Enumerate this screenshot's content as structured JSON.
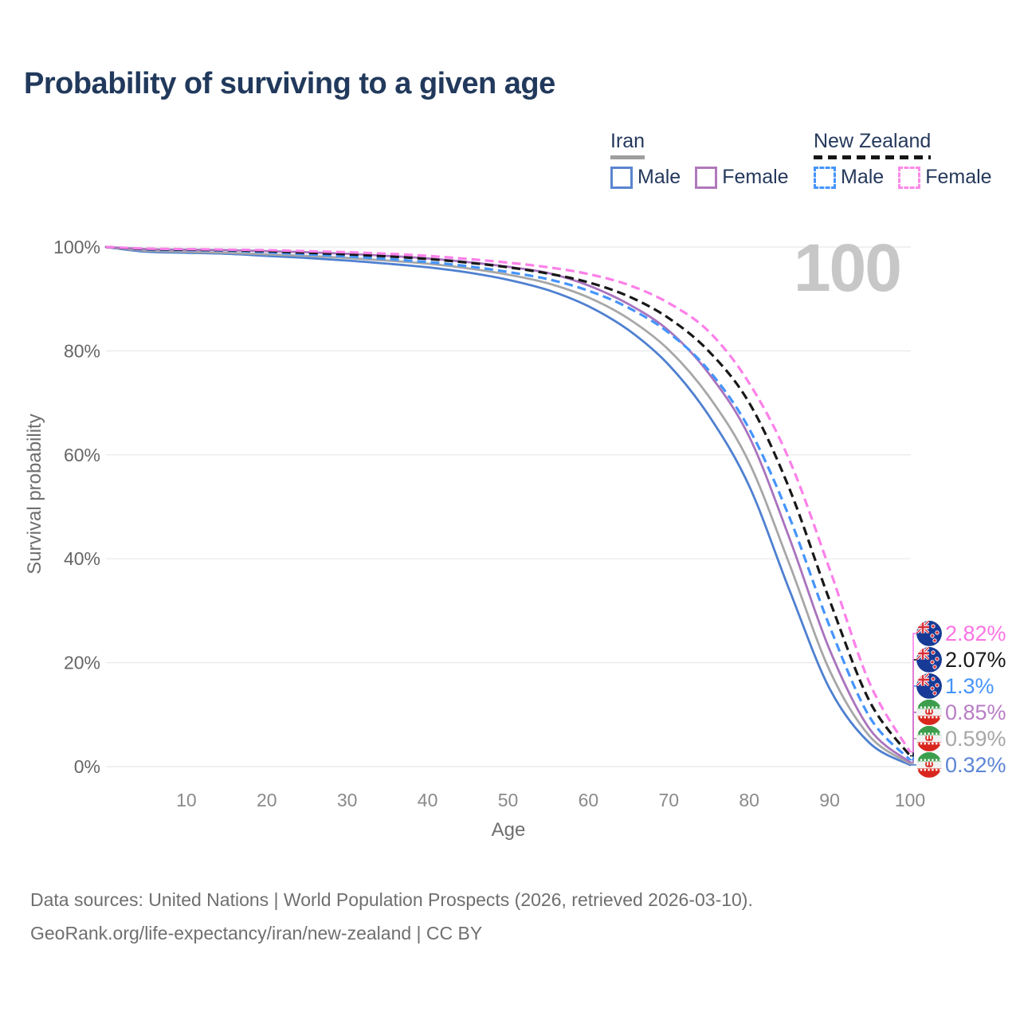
{
  "title": "Probability of surviving to a given age",
  "watermark": "100",
  "legend": {
    "groups": [
      {
        "id": "iran",
        "label": "Iran",
        "underline_color": "#9e9e9e",
        "underline_style": "solid",
        "items": [
          {
            "label": "Male",
            "color": "#5b84d0",
            "style": "solid"
          },
          {
            "label": "Female",
            "color": "#b178bb",
            "style": "solid"
          }
        ]
      },
      {
        "id": "new-zealand",
        "label": "New Zealand",
        "underline_color": "#161616",
        "underline_style": "dashed",
        "items": [
          {
            "label": "Male",
            "color": "#4594fb",
            "style": "dashed"
          },
          {
            "label": "Female",
            "color": "#fb8ae7",
            "style": "dashed"
          }
        ]
      }
    ]
  },
  "chart_data": {
    "type": "line",
    "title": "Probability of surviving to a given age",
    "xlabel": "Age",
    "ylabel": "Survival probability",
    "xlim": [
      0,
      100
    ],
    "ylim": [
      0,
      100
    ],
    "grid": "horizontal",
    "legend_position": "top-right",
    "x_ticks": [
      10,
      20,
      30,
      40,
      50,
      60,
      70,
      80,
      90,
      100
    ],
    "y_ticks": [
      {
        "value": 100,
        "label": "100%"
      },
      {
        "value": 80,
        "label": "80%"
      },
      {
        "value": 60,
        "label": "60%"
      },
      {
        "value": 40,
        "label": "40%"
      },
      {
        "value": 20,
        "label": "20%"
      },
      {
        "value": 0,
        "label": "0%"
      }
    ],
    "x": [
      0,
      5,
      10,
      15,
      20,
      25,
      30,
      35,
      40,
      45,
      50,
      55,
      60,
      65,
      70,
      75,
      80,
      85,
      90,
      95,
      100
    ],
    "series": [
      {
        "id": "iran-male",
        "name": "Iran Male",
        "country": "Iran",
        "sex": "Male",
        "flag": "ir",
        "color": "#4f80d0",
        "dash": null,
        "width": 2.8,
        "values": [
          100,
          99.1,
          98.9,
          98.7,
          98.3,
          97.9,
          97.4,
          96.8,
          96.1,
          95.1,
          93.7,
          91.7,
          88.6,
          84.0,
          77.3,
          67.5,
          54.0,
          34.0,
          15.0,
          4.5,
          0.32
        ],
        "end_label": "0.32%",
        "end_label_color": "#5c85d6"
      },
      {
        "id": "iran-total",
        "name": "Iran",
        "country": "Iran",
        "sex": "Both",
        "flag": "ir",
        "color": "#a7a7a7",
        "dash": null,
        "width": 2.8,
        "values": [
          100,
          99.3,
          99.1,
          98.9,
          98.6,
          98.3,
          97.9,
          97.4,
          96.8,
          95.9,
          94.7,
          93.0,
          90.3,
          86.2,
          80.2,
          71.2,
          58.5,
          39.0,
          18.5,
          5.8,
          0.59
        ],
        "end_label": "0.59%",
        "end_label_color": "#a7a7a7"
      },
      {
        "id": "iran-female",
        "name": "Iran Female",
        "country": "Iran",
        "sex": "Female",
        "flag": "ir",
        "color": "#a973bd",
        "dash": null,
        "width": 2.8,
        "values": [
          100,
          99.6,
          99.5,
          99.4,
          99.2,
          99.0,
          98.7,
          98.3,
          97.8,
          97.1,
          96.2,
          95.0,
          92.6,
          89.0,
          83.9,
          75.6,
          63.5,
          44.0,
          22.5,
          7.2,
          0.85
        ],
        "end_label": "0.85%",
        "end_label_color": "#b87dc6"
      },
      {
        "id": "nz-male",
        "name": "New Zealand Male",
        "country": "New Zealand",
        "sex": "Male",
        "flag": "nz",
        "color": "#4594fb",
        "dash": "11 6",
        "width": 3.2,
        "values": [
          100,
          99.5,
          99.4,
          99.3,
          99.0,
          98.6,
          98.2,
          97.7,
          97.1,
          96.3,
          95.2,
          93.8,
          91.6,
          88.3,
          83.5,
          76.2,
          65.0,
          48.0,
          27.0,
          9.5,
          1.3
        ],
        "end_label": "1.3%",
        "end_label_color": "#4594fb"
      },
      {
        "id": "nz-total",
        "name": "New Zealand",
        "country": "New Zealand",
        "sex": "Both",
        "flag": "nz",
        "color": "#181818",
        "dash": "11 6",
        "width": 3.2,
        "values": [
          100,
          99.6,
          99.5,
          99.4,
          99.2,
          98.9,
          98.6,
          98.2,
          97.7,
          97.0,
          96.1,
          94.9,
          93.2,
          90.5,
          86.3,
          79.9,
          70.0,
          53.5,
          32.0,
          12.5,
          2.07
        ],
        "end_label": "2.07%",
        "end_label_color": "#181818"
      },
      {
        "id": "nz-female",
        "name": "New Zealand Female",
        "country": "New Zealand",
        "sex": "Female",
        "flag": "nz",
        "color": "#fb80e9",
        "dash": "11 6",
        "width": 3.2,
        "values": [
          100,
          99.7,
          99.6,
          99.5,
          99.4,
          99.2,
          99.0,
          98.7,
          98.3,
          97.7,
          97.0,
          96.1,
          94.8,
          92.7,
          89.2,
          83.7,
          73.8,
          59.0,
          38.0,
          16.0,
          2.82
        ],
        "end_label": "2.82%",
        "end_label_color": "#fb74e4"
      }
    ],
    "colors": {
      "grid": "#e8e8e8",
      "y_tick_text": "#666666",
      "x_tick_text": "#8a8a8a",
      "nz_flag_blue": "#163a96",
      "nz_flag_red": "#d6303a",
      "iran_green": "#3c9e4c",
      "iran_red": "#d9271e"
    }
  },
  "footer": {
    "line1": "Data sources: United Nations | World Population Prospects (2026, retrieved 2026-03-10).",
    "line2": "GeoRank.org/life-expectancy/iran/new-zealand | CC BY"
  }
}
